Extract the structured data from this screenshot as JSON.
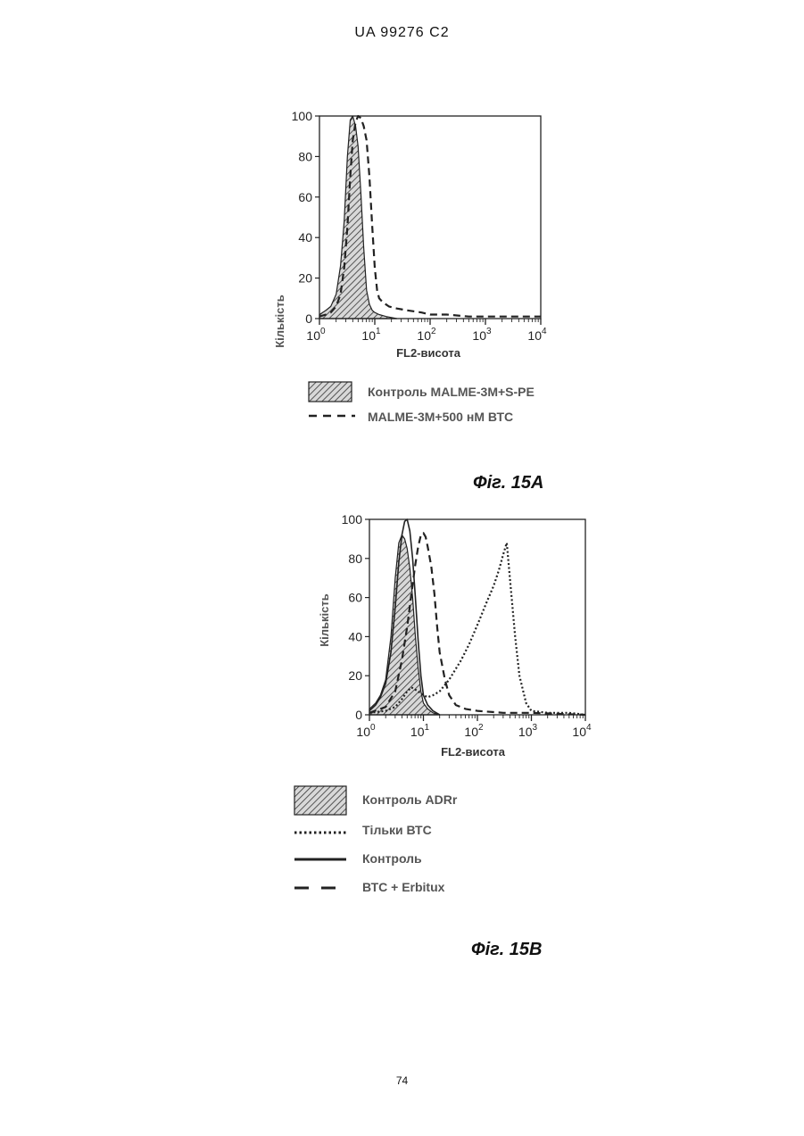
{
  "header": {
    "doc_id": "UA   99276   C2"
  },
  "page_number": "74",
  "figures": [
    {
      "caption": "Фіг. 15А",
      "chart_data": {
        "type": "area",
        "xlabel": "FL2-висота",
        "ylabel": "Кількість",
        "xscale": "log",
        "xlim": [
          1,
          10000
        ],
        "ylim": [
          0,
          100
        ],
        "y_ticks": [
          "0",
          "20",
          "40",
          "60",
          "80",
          "100"
        ],
        "x_ticks": [
          {
            "base": "10",
            "exp": "0"
          },
          {
            "base": "10",
            "exp": "1"
          },
          {
            "base": "10",
            "exp": "2"
          },
          {
            "base": "10",
            "exp": "3"
          },
          {
            "base": "10",
            "exp": "4"
          }
        ],
        "grid": false,
        "series": [
          {
            "name": "Контроль MALME-3M+S-PE",
            "style": "hatched-fill",
            "x": [
              1.0,
              1.3,
              1.6,
              2.0,
              2.4,
              2.8,
              3.2,
              3.6,
              4.0,
              4.5,
              5.0,
              5.6,
              6.3,
              7.1,
              8.0,
              9.0,
              10.0,
              12.0,
              16.0,
              25.0
            ],
            "y": [
              2,
              4,
              6,
              12,
              26,
              48,
              80,
              98,
              100,
              95,
              85,
              62,
              35,
              14,
              7,
              4,
              3,
              2,
              1,
              0
            ]
          },
          {
            "name": "MALME-3M+500 нМ ВТС",
            "style": "dashed",
            "x": [
              1.0,
              1.3,
              1.6,
              2.0,
              2.4,
              2.8,
              3.2,
              3.6,
              4.0,
              4.5,
              5.0,
              5.6,
              6.3,
              7.1,
              8.0,
              9.0,
              10.0,
              11.0,
              12.0,
              14.0,
              18.0,
              25.0,
              40.0,
              70.0,
              100.0,
              200.0,
              500.0,
              1000.0,
              3000.0,
              10000.0
            ],
            "y": [
              1,
              2,
              3,
              6,
              12,
              25,
              45,
              70,
              88,
              97,
              100,
              99,
              95,
              88,
              70,
              45,
              25,
              14,
              10,
              8,
              6,
              5,
              4,
              3,
              2,
              2,
              1,
              1,
              1,
              1
            ]
          }
        ]
      },
      "legend": [
        {
          "name": "Контроль MALME-3M+S-PE",
          "swatch": "hatched-box"
        },
        {
          "name": "MALME-3M+500 нМ ВТС",
          "swatch": "dashed-line"
        }
      ]
    },
    {
      "caption": "Фіг. 15В",
      "chart_data": {
        "type": "area",
        "xlabel": "FL2-висота",
        "ylabel": "Кількість",
        "xscale": "log",
        "xlim": [
          1,
          10000
        ],
        "ylim": [
          0,
          100
        ],
        "y_ticks": [
          "0",
          "20",
          "40",
          "60",
          "80",
          "100"
        ],
        "x_ticks": [
          {
            "base": "10",
            "exp": "0"
          },
          {
            "base": "10",
            "exp": "1"
          },
          {
            "base": "10",
            "exp": "2"
          },
          {
            "base": "10",
            "exp": "3"
          },
          {
            "base": "10",
            "exp": "4"
          }
        ],
        "grid": false,
        "series": [
          {
            "name": "Контроль ADRr",
            "style": "hatched-fill",
            "x": [
              1.0,
              1.3,
              1.6,
              2.0,
              2.5,
              3.0,
              3.5,
              4.0,
              4.5,
              5.0,
              5.6,
              6.3,
              7.1,
              8.0,
              9.0,
              10.0,
              12.0,
              15.0,
              20.0
            ],
            "y": [
              3,
              6,
              10,
              18,
              40,
              70,
              88,
              92,
              90,
              85,
              75,
              60,
              40,
              24,
              12,
              6,
              3,
              1,
              0
            ]
          },
          {
            "name": "Тільки ВТС",
            "style": "dotted",
            "x": [
              1.0,
              2.0,
              3.0,
              4.0,
              5.0,
              6.0,
              8.0,
              10.0,
              12.0,
              15.0,
              20.0,
              30.0,
              50.0,
              70.0,
              100.0,
              150.0,
              200.0,
              250.0,
              300.0,
              350.0,
              400.0,
              500.0,
              600.0,
              800.0,
              1000.0,
              2000.0,
              5000.0,
              10000.0
            ],
            "y": [
              1,
              2,
              4,
              8,
              12,
              14,
              12,
              10,
              9,
              10,
              12,
              18,
              28,
              36,
              46,
              58,
              66,
              74,
              82,
              88,
              70,
              40,
              20,
              6,
              2,
              1,
              1,
              0
            ]
          },
          {
            "name": "Контроль",
            "style": "solid",
            "x": [
              1.0,
              1.3,
              1.6,
              2.0,
              2.5,
              3.0,
              3.5,
              4.0,
              4.5,
              5.0,
              5.6,
              6.3,
              7.1,
              8.0,
              9.0,
              10.0,
              12.0,
              15.0,
              20.0
            ],
            "y": [
              2,
              5,
              9,
              16,
              32,
              55,
              78,
              92,
              99,
              100,
              94,
              80,
              60,
              38,
              20,
              10,
              5,
              2,
              0
            ]
          },
          {
            "name": "ВТС + Erbitux",
            "style": "dashed",
            "x": [
              1.0,
              2.0,
              3.0,
              4.0,
              5.0,
              6.0,
              7.0,
              8.0,
              9.0,
              10.0,
              11.0,
              12.0,
              14.0,
              16.0,
              18.0,
              20.0,
              25.0,
              30.0,
              40.0,
              60.0,
              100.0,
              300.0,
              1000.0,
              10000.0
            ],
            "y": [
              1,
              4,
              12,
              28,
              45,
              62,
              76,
              86,
              92,
              93,
              91,
              86,
              76,
              62,
              45,
              32,
              18,
              10,
              5,
              3,
              2,
              1,
              1,
              0
            ]
          }
        ]
      },
      "legend": [
        {
          "name": "Контроль ADRr",
          "swatch": "hatched-box"
        },
        {
          "name": "Тільки ВТС",
          "swatch": "dotted-line"
        },
        {
          "name": "Контроль",
          "swatch": "solid-line"
        },
        {
          "name": "ВТС + Erbitux",
          "swatch": "long-dash-line"
        }
      ]
    }
  ]
}
